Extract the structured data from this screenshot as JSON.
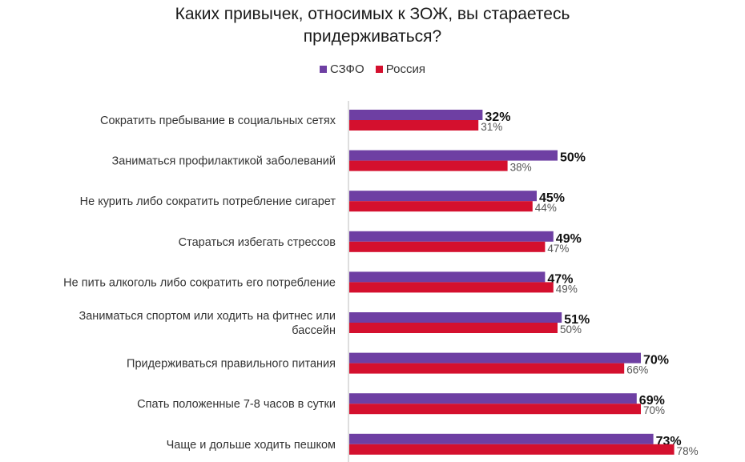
{
  "chart_data": {
    "type": "bar",
    "orientation": "horizontal",
    "title": [
      "Каких привычек, относимых к ЗОЖ, вы стараетесь",
      "придерживаться?"
    ],
    "categories": [
      [
        "Сократить пребывание в социальных сетях"
      ],
      [
        "Заниматься профилактикой заболеваний"
      ],
      [
        "Не курить либо сократить потребление сигарет"
      ],
      [
        "Стараться избегать стрессов"
      ],
      [
        "Не пить алкоголь либо сократить его потребление"
      ],
      [
        "Заниматься спортом или ходить на фитнес или",
        "бассейн"
      ],
      [
        "Придерживаться правильного питания"
      ],
      [
        "Спать положенные 7-8 часов в сутки"
      ],
      [
        "Чаще и дольше ходить пешком"
      ]
    ],
    "series": [
      {
        "name": "СЗФО",
        "color": "#6e3fa3",
        "values": [
          32,
          50,
          45,
          49,
          47,
          51,
          70,
          69,
          73
        ]
      },
      {
        "name": "Россия",
        "color": "#d4102e",
        "values": [
          31,
          38,
          44,
          47,
          49,
          50,
          66,
          70,
          78
        ]
      }
    ],
    "value_suffix": "%",
    "legend_position": "top-center",
    "xlim": [
      0,
      100
    ]
  }
}
